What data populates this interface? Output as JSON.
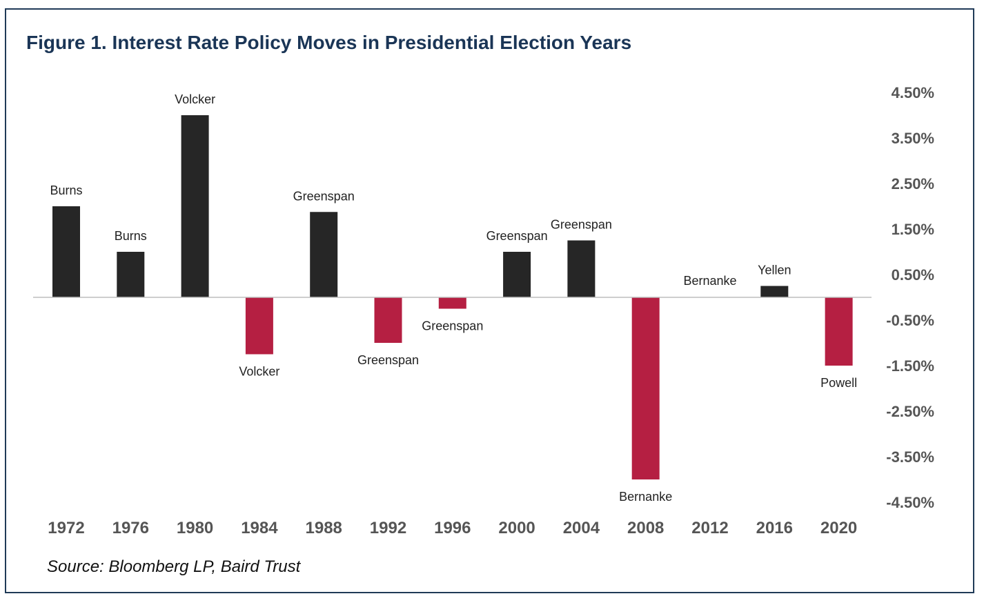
{
  "title": "Figure 1. Interest Rate Policy Moves in Presidential Election Years",
  "source": "Source: Bloomberg LP, Baird Trust",
  "colors": {
    "frame": "#1f3a57",
    "title": "#1a3556",
    "positive": "#262626",
    "negative": "#b51f42",
    "axis": "#bdbdbd"
  },
  "chart_data": {
    "type": "bar",
    "title": "Figure 1. Interest Rate Policy Moves in Presidential Election Years",
    "xlabel": "",
    "ylabel": "",
    "categories": [
      "1972",
      "1976",
      "1980",
      "1984",
      "1988",
      "1992",
      "1996",
      "2000",
      "2004",
      "2008",
      "2012",
      "2016",
      "2020"
    ],
    "values": [
      2.0,
      1.0,
      4.0,
      -1.25,
      1.875,
      -1.0,
      -0.25,
      1.0,
      1.25,
      -4.0,
      0.0,
      0.25,
      -1.5
    ],
    "bar_labels": [
      "Burns",
      "Burns",
      "Volcker",
      "Volcker",
      "Greenspan",
      "Greenspan",
      "Greenspan",
      "Greenspan",
      "Greenspan",
      "Bernanke",
      "Bernanke",
      "Yellen",
      "Powell"
    ],
    "yticks": [
      4.5,
      3.5,
      2.5,
      1.5,
      0.5,
      -0.5,
      -1.5,
      -2.5,
      -3.5,
      -4.5
    ],
    "ytick_labels": [
      "4.50%",
      "3.50%",
      "2.50%",
      "1.50%",
      "0.50%",
      "-0.50%",
      "-1.50%",
      "-2.50%",
      "-3.50%",
      "-4.50%"
    ],
    "ylim": [
      -4.5,
      4.5
    ],
    "y_axis_side": "right",
    "grid": false,
    "legend": "none"
  }
}
